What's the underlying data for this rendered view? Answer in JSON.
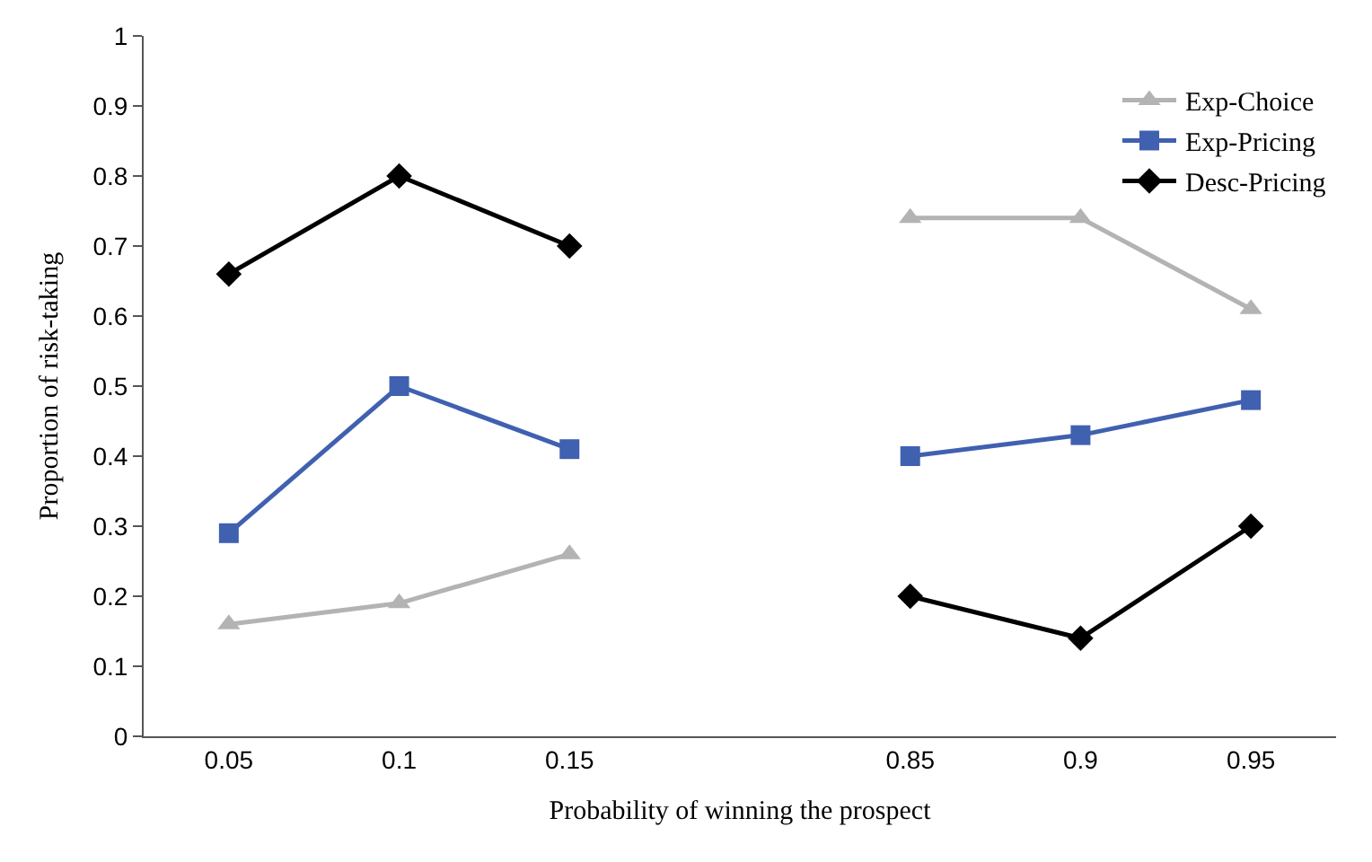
{
  "chart_data": {
    "type": "line",
    "xlabel": "Probability of winning the prospect",
    "ylabel": "Proportion of risk-taking",
    "categories": [
      "0.05",
      "0.1",
      "0.15",
      null,
      "0.85",
      "0.9",
      "0.95"
    ],
    "series": [
      {
        "name": "Exp-Choice",
        "color": "#b3b3b3",
        "marker": "triangle",
        "values": [
          0.16,
          0.19,
          0.26,
          null,
          0.74,
          0.74,
          0.61
        ]
      },
      {
        "name": "Exp-Pricing",
        "color": "#4060b0",
        "marker": "square",
        "values": [
          0.29,
          0.5,
          0.41,
          null,
          0.4,
          0.43,
          0.48
        ]
      },
      {
        "name": "Desc-Pricing",
        "color": "#000000",
        "marker": "diamond",
        "values": [
          0.66,
          0.8,
          0.7,
          null,
          0.2,
          0.14,
          0.3
        ]
      }
    ],
    "ylim": [
      0,
      1
    ],
    "yticks": [
      0,
      0.1,
      0.2,
      0.3,
      0.4,
      0.5,
      0.6,
      0.7,
      0.8,
      0.9,
      1
    ],
    "legend": "top right",
    "line_style": "solid"
  }
}
